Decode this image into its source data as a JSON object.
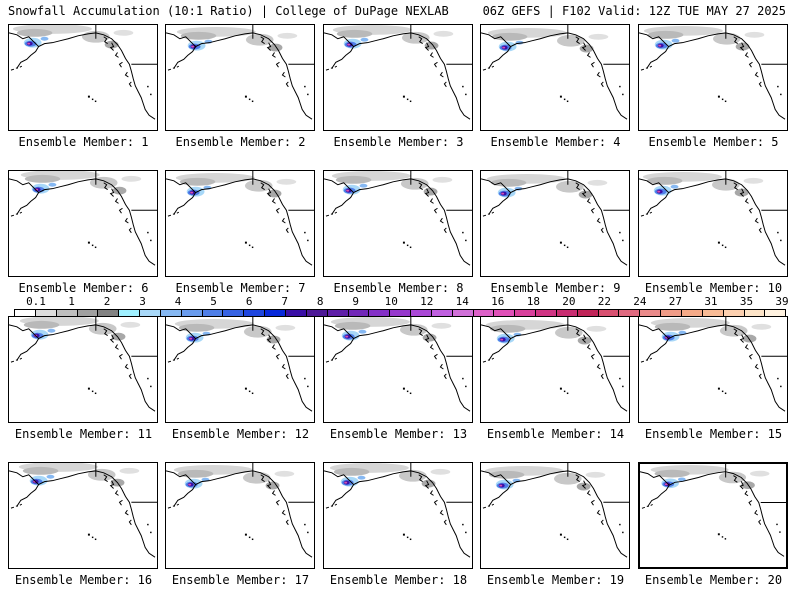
{
  "header": {
    "left_title": "Snowfall Accumulation (10:1 Ratio) | College of DuPage NEXLAB",
    "right_title": "06Z GEFS | F102 Valid: 12Z TUE MAY 27 2025"
  },
  "members": [
    {
      "label": "Ensemble Member: 1"
    },
    {
      "label": "Ensemble Member: 2"
    },
    {
      "label": "Ensemble Member: 3"
    },
    {
      "label": "Ensemble Member: 4"
    },
    {
      "label": "Ensemble Member: 5"
    },
    {
      "label": "Ensemble Member: 6"
    },
    {
      "label": "Ensemble Member: 7"
    },
    {
      "label": "Ensemble Member: 8"
    },
    {
      "label": "Ensemble Member: 9"
    },
    {
      "label": "Ensemble Member: 10"
    },
    {
      "label": "Ensemble Member: 11"
    },
    {
      "label": "Ensemble Member: 12"
    },
    {
      "label": "Ensemble Member: 13"
    },
    {
      "label": "Ensemble Member: 14"
    },
    {
      "label": "Ensemble Member: 15"
    },
    {
      "label": "Ensemble Member: 16"
    },
    {
      "label": "Ensemble Member: 17"
    },
    {
      "label": "Ensemble Member: 18"
    },
    {
      "label": "Ensemble Member: 19"
    },
    {
      "label": "Ensemble Member: 20"
    }
  ],
  "selected_member": 20,
  "colorbar": {
    "ticks": [
      "0.1",
      "1",
      "2",
      "3",
      "4",
      "5",
      "6",
      "7",
      "8",
      "9",
      "10",
      "12",
      "14",
      "16",
      "18",
      "20",
      "22",
      "24",
      "27",
      "31",
      "35",
      "39"
    ],
    "colors": [
      "#ffffff",
      "#dcdcdc",
      "#bebebe",
      "#a0a0a0",
      "#828282",
      "#9ff0ff",
      "#a8d8f8",
      "#86b8f2",
      "#6a9ced",
      "#4f7fe8",
      "#3763e3",
      "#1f46df",
      "#0829da",
      "#3a0fa6",
      "#4d1896",
      "#5f1fa8",
      "#7126b8",
      "#8430c7",
      "#9638cc",
      "#aa48d6",
      "#c060e0",
      "#d070d8",
      "#dc60c8",
      "#e050b8",
      "#d8409c",
      "#d03484",
      "#c82c70",
      "#c02458",
      "#d85070",
      "#e06a80",
      "#ea8a8a",
      "#f09c88",
      "#f5aa88",
      "#f8bb96",
      "#fcd0b0",
      "#fde4c8",
      "#fff2e0"
    ]
  }
}
